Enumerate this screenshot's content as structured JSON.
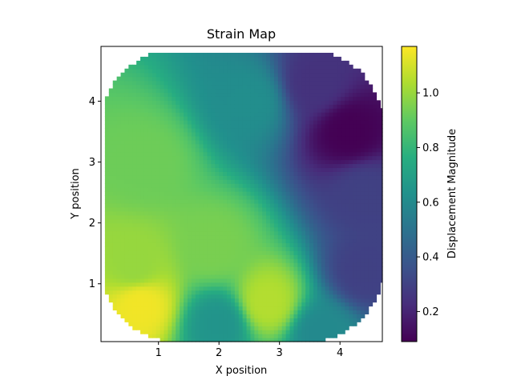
{
  "chart_data": {
    "type": "heatmap",
    "title": "Strain Map",
    "xlabel": "X position",
    "ylabel": "Y position",
    "colorbar_label": "Displacement Magnitude",
    "xlim": [
      0.05,
      4.7
    ],
    "ylim": [
      0.05,
      4.9
    ],
    "xticks": [
      1,
      2,
      3,
      4
    ],
    "yticks": [
      1,
      2,
      3,
      4
    ],
    "color_range": [
      0.09,
      1.17
    ],
    "colorbar_ticks": [
      0.2,
      0.4,
      0.6,
      0.8,
      1.0
    ],
    "colormap": "viridis",
    "grid": false,
    "z_hotspots": [
      {
        "x": 0.7,
        "y": 0.65,
        "value": 1.15
      },
      {
        "x": 2.8,
        "y": 0.7,
        "value": 1.05
      },
      {
        "x": 0.6,
        "y": 1.3,
        "value": 1.0
      },
      {
        "x": 0.8,
        "y": 3.0,
        "value": 0.93
      },
      {
        "x": 1.9,
        "y": 1.6,
        "value": 0.95
      },
      {
        "x": 2.0,
        "y": 0.35,
        "value": 0.65
      },
      {
        "x": 2.5,
        "y": 4.0,
        "value": 0.62
      },
      {
        "x": 3.6,
        "y": 4.3,
        "value": 0.25
      },
      {
        "x": 4.15,
        "y": 3.5,
        "value": 0.09
      },
      {
        "x": 4.4,
        "y": 2.5,
        "value": 0.3
      },
      {
        "x": 4.4,
        "y": 1.2,
        "value": 0.3
      },
      {
        "x": 3.7,
        "y": 0.2,
        "value": 0.6
      }
    ]
  }
}
